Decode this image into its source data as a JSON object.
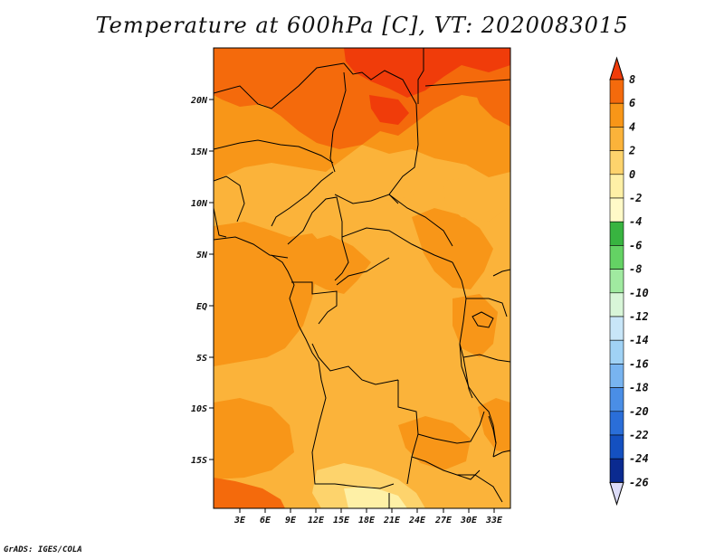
{
  "title": "Temperature at 600hPa [C], VT: 2020083015",
  "footer": "GrADS: IGES/COLA",
  "map": {
    "lat_labels": [
      "20N",
      "15N",
      "10N",
      "5N",
      "EQ",
      "5S",
      "10S",
      "15S"
    ],
    "lon_labels": [
      "3E",
      "6E",
      "9E",
      "12E",
      "15E",
      "18E",
      "21E",
      "24E",
      "27E",
      "30E",
      "33E"
    ],
    "fill_colors": {
      "gt6": "#f03c0a",
      "4to6": "#f46a0c",
      "2to4": "#f89618",
      "0to2": "#fbb33a",
      "m2to0": "#fdd36c"
    }
  },
  "colorbar": {
    "levels": [
      "8",
      "6",
      "4",
      "2",
      "0",
      "-2",
      "-4",
      "-6",
      "-8",
      "-10",
      "-12",
      "-14",
      "-16",
      "-18",
      "-20",
      "-22",
      "-24",
      "-26"
    ],
    "colors": [
      "#f03c0a",
      "#f46a0c",
      "#f89618",
      "#fbb33a",
      "#fdd36c",
      "#fef0a6",
      "#fffac8",
      "#38b440",
      "#64d264",
      "#a0eaa0",
      "#d8f6d8",
      "#c8e6f8",
      "#a0d2f5",
      "#78b4f0",
      "#4a8ee6",
      "#2a6ed8",
      "#1450c0",
      "#0a2a90",
      "#0a0a60",
      "#dcdcf8"
    ]
  }
}
